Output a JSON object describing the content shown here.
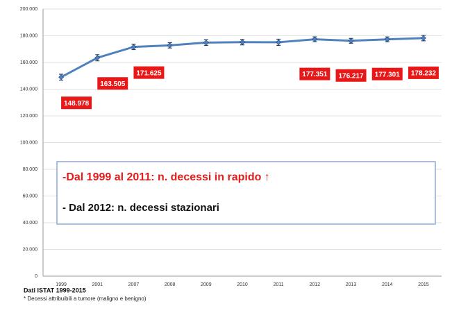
{
  "chart_data": {
    "type": "line",
    "categories": [
      "1999",
      "2001",
      "2007",
      "2008",
      "2009",
      "2010",
      "2011",
      "2012",
      "2013",
      "2014",
      "2015"
    ],
    "series": [
      {
        "color": "#4f81bd",
        "values": [
          148978,
          163505,
          171625,
          172800,
          174900,
          175200,
          175100,
          177351,
          176217,
          177301,
          178232
        ],
        "errors": [
          2200,
          2300,
          2000,
          2000,
          2100,
          2000,
          2300,
          1800,
          1800,
          1800,
          2000
        ],
        "value_labels": [
          "148.978",
          "163.505",
          "171.625",
          null,
          null,
          null,
          null,
          "177.351",
          "176.217",
          "177.301",
          "178.232"
        ]
      }
    ],
    "ylim": [
      0,
      200000
    ],
    "yticks": [
      {
        "value": 0,
        "label": "0"
      },
      {
        "value": 20000,
        "label": "20.000"
      },
      {
        "value": 40000,
        "label": "40.000"
      },
      {
        "value": 60000,
        "label": "60.000"
      },
      {
        "value": 80000,
        "label": "80.000"
      },
      {
        "value": 100000,
        "label": "100.000"
      },
      {
        "value": 120000,
        "label": "120.000"
      },
      {
        "value": 140000,
        "label": "140.000"
      },
      {
        "value": 160000,
        "label": "160.000"
      },
      {
        "value": 180000,
        "label": "180.000"
      },
      {
        "value": 200000,
        "label": "200.000"
      }
    ],
    "grid": true,
    "annotations": [
      "-Dal 1999 al 2011:  n. decessi in rapido ↑",
      "- Dal 2012:  n. decessi stazionari"
    ],
    "source": "Dati ISTAT 1999-2015",
    "note": "* Decessi attribuibili a tumore (maligno e benigno)"
  }
}
